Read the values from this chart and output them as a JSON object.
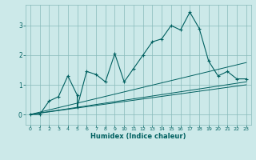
{
  "title": "",
  "xlabel": "Humidex (Indice chaleur)",
  "ylabel": "",
  "bg_color": "#cce9e9",
  "grid_color": "#88bbbb",
  "line_color": "#006060",
  "xlim": [
    -0.5,
    23.5
  ],
  "ylim": [
    -0.35,
    3.7
  ],
  "xticks": [
    0,
    1,
    2,
    3,
    4,
    5,
    6,
    7,
    8,
    9,
    10,
    11,
    12,
    13,
    14,
    15,
    16,
    17,
    18,
    19,
    20,
    21,
    22,
    23
  ],
  "yticks": [
    0,
    1,
    2,
    3
  ],
  "series": [
    [
      0,
      0.0
    ],
    [
      1,
      0.0
    ],
    [
      2,
      0.45
    ],
    [
      3,
      0.6
    ],
    [
      4,
      1.3
    ],
    [
      5,
      0.65
    ],
    [
      5,
      0.25
    ],
    [
      6,
      1.45
    ],
    [
      7,
      1.35
    ],
    [
      8,
      1.1
    ],
    [
      9,
      2.05
    ],
    [
      10,
      1.1
    ],
    [
      11,
      1.55
    ],
    [
      12,
      2.0
    ],
    [
      13,
      2.45
    ],
    [
      14,
      2.55
    ],
    [
      15,
      3.0
    ],
    [
      16,
      2.85
    ],
    [
      17,
      3.45
    ],
    [
      18,
      2.9
    ],
    [
      19,
      1.8
    ],
    [
      20,
      1.3
    ],
    [
      21,
      1.45
    ],
    [
      22,
      1.2
    ],
    [
      23,
      1.2
    ]
  ],
  "line2": [
    [
      0,
      0.0
    ],
    [
      23,
      1.75
    ]
  ],
  "line3": [
    [
      0,
      0.0
    ],
    [
      23,
      1.1
    ]
  ],
  "line4": [
    [
      0,
      0.0
    ],
    [
      23,
      1.0
    ]
  ]
}
